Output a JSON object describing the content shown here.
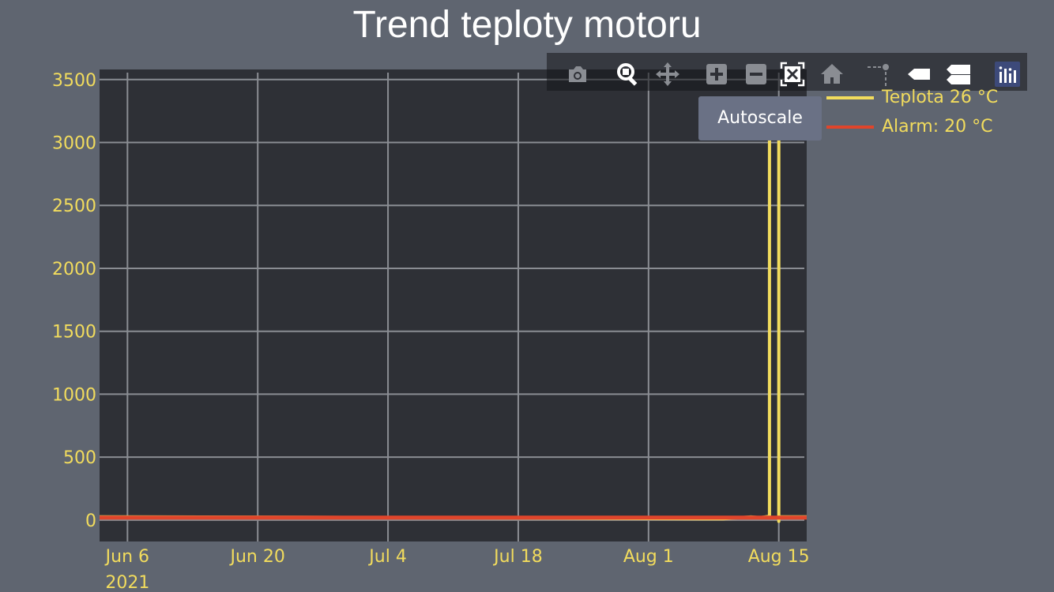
{
  "title": "Trend teploty motoru",
  "colors": {
    "page_bg": "#5f6570",
    "plot_bg": "#2e3036",
    "grid": "#8a8d93",
    "tick_text": "#f2dc5d",
    "teplota": "#f2dc5d",
    "alarm": "#e0452b",
    "tooltip_bg": "#6a7185"
  },
  "modebar": {
    "buttons": [
      {
        "name": "camera-icon",
        "tip": "Download plot as a png"
      },
      {
        "name": "zoom-icon",
        "tip": "Zoom"
      },
      {
        "name": "pan-icon",
        "tip": "Pan"
      },
      {
        "name": "zoom-in-icon",
        "tip": "Zoom in"
      },
      {
        "name": "zoom-out-icon",
        "tip": "Zoom out"
      },
      {
        "name": "autoscale-icon",
        "tip": "Autoscale"
      },
      {
        "name": "home-icon",
        "tip": "Reset axes"
      },
      {
        "name": "spike-lines-icon",
        "tip": "Toggle Spike Lines"
      },
      {
        "name": "hover-closest-icon",
        "tip": "Show closest data on hover"
      },
      {
        "name": "hover-compare-icon",
        "tip": "Compare data on hover"
      },
      {
        "name": "plotly-logo-icon",
        "tip": "Produced with Plotly"
      }
    ]
  },
  "tooltip": {
    "text": "Autoscale"
  },
  "chart_data": {
    "type": "line",
    "xlabel": "",
    "ylabel": "",
    "ylim": [
      -170,
      3580
    ],
    "xlim": [
      "2021-06-03",
      "2021-08-18"
    ],
    "yticks": [
      "0",
      "500",
      "1000",
      "1500",
      "2000",
      "2500",
      "3000",
      "3500"
    ],
    "ytick_values": [
      0,
      500,
      1000,
      1500,
      2000,
      2500,
      3000,
      3500
    ],
    "xticks": [
      {
        "date": "2021-06-06",
        "label": "Jun 6",
        "sub": "2021"
      },
      {
        "date": "2021-06-20",
        "label": "Jun 20",
        "sub": ""
      },
      {
        "date": "2021-07-04",
        "label": "Jul 4",
        "sub": ""
      },
      {
        "date": "2021-07-18",
        "label": "Jul 18",
        "sub": ""
      },
      {
        "date": "2021-08-01",
        "label": "Aug 1",
        "sub": ""
      },
      {
        "date": "2021-08-15",
        "label": "Aug 15",
        "sub": ""
      }
    ],
    "grid": true,
    "legend_position": "top-right",
    "series": [
      {
        "name": "Teplota 26 °C",
        "color": "#f2dc5d",
        "x": [
          "2021-06-03",
          "2021-06-20",
          "2021-07-04",
          "2021-07-18",
          "2021-08-01",
          "2021-08-09",
          "2021-08-12",
          "2021-08-13",
          "2021-08-14",
          "2021-08-14",
          "2021-08-15",
          "2021-08-15",
          "2021-08-15",
          "2021-08-18"
        ],
        "y": [
          26,
          24,
          20,
          16,
          12,
          10,
          25,
          20,
          30,
          3300,
          3300,
          -10,
          26,
          26
        ]
      },
      {
        "name": "Alarm: 20 °C",
        "color": "#e0452b",
        "x": [
          "2021-06-03",
          "2021-08-18"
        ],
        "y": [
          20,
          20
        ]
      }
    ]
  }
}
